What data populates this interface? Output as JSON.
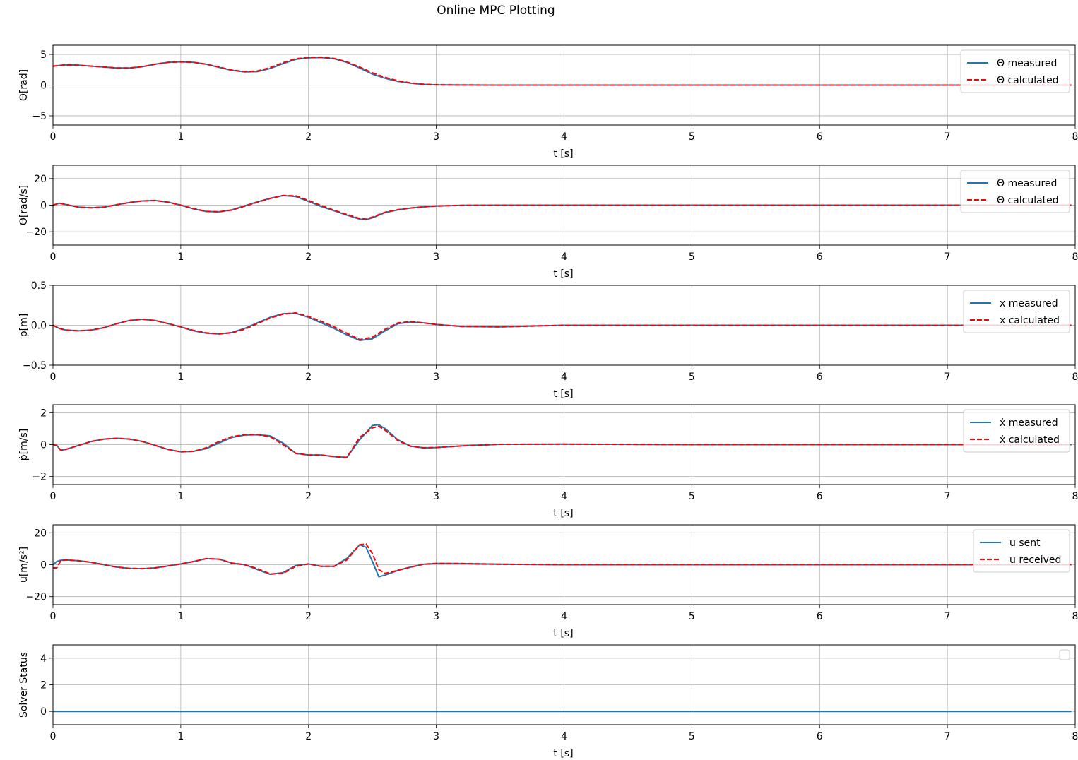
{
  "figure": {
    "title": "Online MPC Plotting"
  },
  "chart_data": [
    {
      "type": "line",
      "ylabel": "Θ[rad]",
      "xlabel": "t [s]",
      "xlim": [
        0,
        8
      ],
      "ylim": [
        -6.5,
        6.5
      ],
      "xticks": [
        "0",
        "1",
        "2",
        "3",
        "4",
        "5",
        "6",
        "7",
        "8"
      ],
      "yticks": [
        {
          "v": 5,
          "label": "5"
        },
        {
          "v": 0,
          "label": "0"
        },
        {
          "v": -5,
          "label": "−5"
        }
      ],
      "grid": true,
      "legend": "upper right",
      "series": [
        {
          "name": "Θ measured",
          "color": "#1f77b4",
          "dash": "solid",
          "x": [
            0,
            0.1,
            0.2,
            0.3,
            0.4,
            0.5,
            0.6,
            0.7,
            0.8,
            0.9,
            1.0,
            1.1,
            1.2,
            1.3,
            1.4,
            1.5,
            1.6,
            1.7,
            1.8,
            1.9,
            2.0,
            2.1,
            2.2,
            2.3,
            2.4,
            2.5,
            2.6,
            2.7,
            2.8,
            2.9,
            3.0,
            3.2,
            3.5,
            4.0,
            5.0,
            6.0,
            7.0,
            7.97
          ],
          "y": [
            3.1,
            3.3,
            3.25,
            3.1,
            2.95,
            2.8,
            2.8,
            3.0,
            3.4,
            3.7,
            3.8,
            3.7,
            3.4,
            2.9,
            2.4,
            2.15,
            2.2,
            2.7,
            3.5,
            4.2,
            4.45,
            4.5,
            4.3,
            3.7,
            2.8,
            1.8,
            1.1,
            0.6,
            0.3,
            0.12,
            0.05,
            0.01,
            0,
            0,
            0,
            0,
            0,
            0
          ]
        },
        {
          "name": "Θ calculated",
          "color": "#ff0000",
          "dash": "dashed",
          "x": [
            0,
            0.1,
            0.2,
            0.3,
            0.4,
            0.5,
            0.6,
            0.7,
            0.8,
            0.9,
            1.0,
            1.1,
            1.2,
            1.3,
            1.4,
            1.5,
            1.6,
            1.7,
            1.8,
            1.9,
            2.0,
            2.1,
            2.2,
            2.3,
            2.4,
            2.5,
            2.6,
            2.7,
            2.8,
            2.9,
            3.0,
            3.2,
            3.5,
            4.0,
            5.0,
            6.0,
            7.0,
            7.97
          ],
          "y": [
            3.1,
            3.3,
            3.25,
            3.1,
            2.95,
            2.8,
            2.8,
            3.0,
            3.4,
            3.7,
            3.8,
            3.7,
            3.4,
            2.95,
            2.45,
            2.2,
            2.3,
            2.85,
            3.65,
            4.3,
            4.5,
            4.55,
            4.35,
            3.8,
            2.95,
            2.0,
            1.25,
            0.7,
            0.35,
            0.14,
            0.05,
            0.01,
            0,
            0,
            0,
            0,
            0,
            0
          ]
        }
      ]
    },
    {
      "type": "line",
      "ylabel": "Θ̇[rad/s]",
      "xlabel": "t [s]",
      "xlim": [
        0,
        8
      ],
      "ylim": [
        -30,
        30
      ],
      "xticks": [
        "0",
        "1",
        "2",
        "3",
        "4",
        "5",
        "6",
        "7",
        "8"
      ],
      "yticks": [
        {
          "v": 20,
          "label": "20"
        },
        {
          "v": 0,
          "label": "0"
        },
        {
          "v": -20,
          "label": "−20"
        }
      ],
      "grid": true,
      "legend": "upper right",
      "series": [
        {
          "name": "Θ̇ measured",
          "color": "#1f77b4",
          "dash": "solid",
          "x": [
            0,
            0.05,
            0.1,
            0.2,
            0.3,
            0.4,
            0.5,
            0.6,
            0.7,
            0.8,
            0.9,
            1.0,
            1.1,
            1.2,
            1.3,
            1.4,
            1.5,
            1.6,
            1.7,
            1.8,
            1.9,
            2.0,
            2.1,
            2.2,
            2.3,
            2.4,
            2.45,
            2.5,
            2.6,
            2.7,
            2.8,
            2.9,
            3.0,
            3.2,
            3.5,
            4.0,
            5.0,
            6.0,
            7.0,
            7.97
          ],
          "y": [
            0,
            1.5,
            0.5,
            -1.5,
            -2,
            -1.5,
            0.3,
            2,
            3.2,
            3.5,
            2.3,
            0,
            -2.8,
            -4.8,
            -5,
            -3.5,
            -0.5,
            2.5,
            5.2,
            7.2,
            6.5,
            2.8,
            -1,
            -4.2,
            -7.5,
            -10.5,
            -11,
            -9.5,
            -5.5,
            -3.5,
            -2.2,
            -1.3,
            -0.7,
            -0.1,
            0,
            0,
            0,
            0,
            0,
            0
          ]
        },
        {
          "name": "Θ̇ calculated",
          "color": "#ff0000",
          "dash": "dashed",
          "x": [
            0,
            0.05,
            0.1,
            0.2,
            0.3,
            0.4,
            0.5,
            0.6,
            0.7,
            0.8,
            0.9,
            1.0,
            1.1,
            1.2,
            1.3,
            1.4,
            1.5,
            1.6,
            1.7,
            1.8,
            1.9,
            2.0,
            2.1,
            2.2,
            2.3,
            2.4,
            2.45,
            2.5,
            2.6,
            2.7,
            2.8,
            2.9,
            3.0,
            3.2,
            3.5,
            4.0,
            5.0,
            6.0,
            7.0,
            7.97
          ],
          "y": [
            0,
            1.5,
            0.5,
            -1.5,
            -2,
            -1.5,
            0.3,
            2,
            3.2,
            3.5,
            2.3,
            0,
            -2.6,
            -4.6,
            -5,
            -3.7,
            -0.8,
            2.2,
            5,
            7.3,
            7,
            3.5,
            -0.3,
            -3.8,
            -7,
            -10,
            -10.5,
            -9,
            -5.3,
            -3.4,
            -2.1,
            -1.3,
            -0.7,
            -0.1,
            0,
            0,
            0,
            0,
            0,
            0
          ]
        }
      ]
    },
    {
      "type": "line",
      "ylabel": "p[m]",
      "xlabel": "t [s]",
      "xlim": [
        0,
        8
      ],
      "ylim": [
        -0.5,
        0.5
      ],
      "xticks": [
        "0",
        "1",
        "2",
        "3",
        "4",
        "5",
        "6",
        "7",
        "8"
      ],
      "yticks": [
        {
          "v": 0.5,
          "label": "0.5"
        },
        {
          "v": 0,
          "label": "0.0"
        },
        {
          "v": -0.5,
          "label": "−0.5"
        }
      ],
      "grid": true,
      "legend": "upper right",
      "series": [
        {
          "name": "x measured",
          "color": "#1f77b4",
          "dash": "solid",
          "x": [
            0,
            0.05,
            0.1,
            0.2,
            0.3,
            0.4,
            0.5,
            0.6,
            0.7,
            0.8,
            0.9,
            1.0,
            1.1,
            1.2,
            1.3,
            1.4,
            1.5,
            1.6,
            1.7,
            1.8,
            1.9,
            2.0,
            2.1,
            2.2,
            2.3,
            2.4,
            2.5,
            2.6,
            2.7,
            2.8,
            2.9,
            3.0,
            3.2,
            3.5,
            4.0,
            5.0,
            6.0,
            7.0,
            7.97
          ],
          "y": [
            0,
            -0.04,
            -0.06,
            -0.07,
            -0.06,
            -0.03,
            0.02,
            0.06,
            0.075,
            0.06,
            0.02,
            -0.02,
            -0.07,
            -0.1,
            -0.11,
            -0.09,
            -0.04,
            0.03,
            0.1,
            0.145,
            0.15,
            0.1,
            0.03,
            -0.04,
            -0.12,
            -0.19,
            -0.17,
            -0.07,
            0.02,
            0.04,
            0.03,
            0.01,
            -0.015,
            -0.02,
            0,
            0,
            0,
            0,
            0
          ]
        },
        {
          "name": "x calculated",
          "color": "#ff0000",
          "dash": "dashed",
          "x": [
            0,
            0.05,
            0.1,
            0.2,
            0.3,
            0.4,
            0.5,
            0.6,
            0.7,
            0.8,
            0.9,
            1.0,
            1.1,
            1.2,
            1.3,
            1.4,
            1.5,
            1.6,
            1.7,
            1.8,
            1.9,
            2.0,
            2.1,
            2.2,
            2.3,
            2.4,
            2.5,
            2.6,
            2.7,
            2.8,
            2.9,
            3.0,
            3.2,
            3.5,
            4.0,
            5.0,
            6.0,
            7.0,
            7.97
          ],
          "y": [
            0,
            -0.04,
            -0.06,
            -0.07,
            -0.06,
            -0.03,
            0.02,
            0.06,
            0.075,
            0.06,
            0.02,
            -0.02,
            -0.065,
            -0.095,
            -0.11,
            -0.095,
            -0.05,
            0.02,
            0.09,
            0.14,
            0.155,
            0.11,
            0.05,
            -0.02,
            -0.1,
            -0.18,
            -0.15,
            -0.05,
            0.03,
            0.045,
            0.03,
            0.01,
            -0.015,
            -0.02,
            0,
            0,
            0,
            0,
            0
          ]
        }
      ]
    },
    {
      "type": "line",
      "ylabel": "ṗ[m/s]",
      "xlabel": "t [s]",
      "xlim": [
        0,
        8
      ],
      "ylim": [
        -2.5,
        2.5
      ],
      "xticks": [
        "0",
        "1",
        "2",
        "3",
        "4",
        "5",
        "6",
        "7",
        "8"
      ],
      "yticks": [
        {
          "v": 2,
          "label": "2"
        },
        {
          "v": 0,
          "label": "0"
        },
        {
          "v": -2,
          "label": "−2"
        }
      ],
      "grid": true,
      "legend": "upper right",
      "series": [
        {
          "name": "ẋ measured",
          "color": "#1f77b4",
          "dash": "solid",
          "x": [
            0,
            0.03,
            0.06,
            0.1,
            0.2,
            0.3,
            0.4,
            0.5,
            0.6,
            0.7,
            0.8,
            0.9,
            1.0,
            1.1,
            1.2,
            1.3,
            1.4,
            1.5,
            1.6,
            1.7,
            1.8,
            1.9,
            2.0,
            2.1,
            2.2,
            2.3,
            2.4,
            2.5,
            2.55,
            2.6,
            2.7,
            2.8,
            2.9,
            3.0,
            3.2,
            3.5,
            4.0,
            5.0,
            6.0,
            7.0,
            7.97
          ],
          "y": [
            0,
            -0.05,
            -0.35,
            -0.3,
            -0.05,
            0.2,
            0.35,
            0.4,
            0.35,
            0.2,
            -0.05,
            -0.3,
            -0.45,
            -0.42,
            -0.25,
            0.1,
            0.45,
            0.6,
            0.62,
            0.55,
            0.1,
            -0.55,
            -0.65,
            -0.65,
            -0.75,
            -0.8,
            0.3,
            1.2,
            1.25,
            1.0,
            0.3,
            -0.1,
            -0.2,
            -0.18,
            -0.08,
            0.02,
            0.03,
            0,
            0,
            0,
            0
          ]
        },
        {
          "name": "ẋ calculated",
          "color": "#ff0000",
          "dash": "dashed",
          "x": [
            0,
            0.03,
            0.06,
            0.1,
            0.2,
            0.3,
            0.4,
            0.5,
            0.6,
            0.7,
            0.8,
            0.9,
            1.0,
            1.1,
            1.2,
            1.3,
            1.4,
            1.5,
            1.6,
            1.7,
            1.8,
            1.9,
            2.0,
            2.1,
            2.2,
            2.3,
            2.4,
            2.5,
            2.55,
            2.6,
            2.7,
            2.8,
            2.9,
            3.0,
            3.2,
            3.5,
            4.0,
            5.0,
            6.0,
            7.0,
            7.97
          ],
          "y": [
            0,
            -0.05,
            -0.35,
            -0.3,
            -0.05,
            0.2,
            0.35,
            0.4,
            0.35,
            0.2,
            -0.05,
            -0.3,
            -0.45,
            -0.42,
            -0.2,
            0.2,
            0.5,
            0.62,
            0.63,
            0.5,
            0,
            -0.55,
            -0.65,
            -0.65,
            -0.75,
            -0.8,
            0.45,
            1.05,
            1.15,
            0.9,
            0.25,
            -0.1,
            -0.2,
            -0.18,
            -0.08,
            0.02,
            0.03,
            0,
            0,
            0,
            0
          ]
        }
      ]
    },
    {
      "type": "line",
      "ylabel": "u[m/s²]",
      "xlabel": "t [s]",
      "xlim": [
        0,
        8
      ],
      "ylim": [
        -25,
        25
      ],
      "xticks": [
        "0",
        "1",
        "2",
        "3",
        "4",
        "5",
        "6",
        "7",
        "8"
      ],
      "yticks": [
        {
          "v": 20,
          "label": "20"
        },
        {
          "v": 0,
          "label": "0"
        },
        {
          "v": -20,
          "label": "−20"
        }
      ],
      "grid": true,
      "legend": "upper right",
      "series": [
        {
          "name": "u sent",
          "color": "#1f77b4",
          "dash": "solid",
          "x": [
            0,
            0.03,
            0.06,
            0.1,
            0.2,
            0.3,
            0.4,
            0.5,
            0.6,
            0.7,
            0.8,
            0.9,
            1.0,
            1.1,
            1.2,
            1.3,
            1.4,
            1.5,
            1.6,
            1.7,
            1.8,
            1.9,
            2.0,
            2.1,
            2.2,
            2.3,
            2.4,
            2.45,
            2.5,
            2.55,
            2.6,
            2.7,
            2.8,
            2.9,
            3.0,
            3.2,
            3.5,
            4.0,
            5.0,
            6.0,
            7.0,
            7.97
          ],
          "y": [
            0,
            2,
            2.8,
            3,
            2.5,
            1.5,
            0,
            -1.5,
            -2.3,
            -2.5,
            -2,
            -0.8,
            0.5,
            2,
            3.8,
            3.5,
            1,
            0,
            -3,
            -6,
            -5,
            -0.5,
            0.5,
            -1,
            -1,
            4,
            12.5,
            11,
            2,
            -7.5,
            -6.5,
            -3.5,
            -1.5,
            0.3,
            0.8,
            0.7,
            0.3,
            0,
            0,
            0,
            0,
            0
          ]
        },
        {
          "name": "u received",
          "color": "#ff0000",
          "dash": "dashed",
          "x": [
            0,
            0.03,
            0.06,
            0.1,
            0.2,
            0.3,
            0.4,
            0.5,
            0.6,
            0.7,
            0.8,
            0.9,
            1.0,
            1.1,
            1.2,
            1.3,
            1.4,
            1.5,
            1.6,
            1.7,
            1.8,
            1.9,
            2.0,
            2.1,
            2.2,
            2.3,
            2.4,
            2.45,
            2.5,
            2.55,
            2.6,
            2.7,
            2.8,
            2.9,
            3.0,
            3.2,
            3.5,
            4.0,
            5.0,
            6.0,
            7.0,
            7.97
          ],
          "y": [
            -2,
            -2,
            2.5,
            3,
            2.5,
            1.5,
            0,
            -1.5,
            -2.3,
            -2.5,
            -2,
            -0.8,
            0.5,
            2,
            3.8,
            3.5,
            1,
            0,
            -2.5,
            -5.8,
            -5.5,
            -1,
            0.5,
            -1,
            -1,
            3,
            12.5,
            13,
            7,
            -3,
            -5.5,
            -3.5,
            -1.5,
            0.3,
            0.8,
            0.7,
            0.3,
            0,
            0,
            0,
            0,
            0
          ]
        }
      ]
    },
    {
      "type": "line",
      "ylabel": "Solver Status",
      "xlabel": "t [s]",
      "xlim": [
        0,
        8
      ],
      "ylim": [
        -1,
        5
      ],
      "xticks": [
        "0",
        "1",
        "2",
        "3",
        "4",
        "5",
        "6",
        "7",
        "8"
      ],
      "yticks": [
        {
          "v": 4,
          "label": "4"
        },
        {
          "v": 2,
          "label": "2"
        },
        {
          "v": 0,
          "label": "0"
        }
      ],
      "grid": true,
      "legend": "upper right (empty)",
      "series": [
        {
          "color": "#1f77b4",
          "dash": "solid",
          "x": [
            0,
            7.97
          ],
          "y": [
            0,
            0
          ]
        }
      ]
    }
  ]
}
